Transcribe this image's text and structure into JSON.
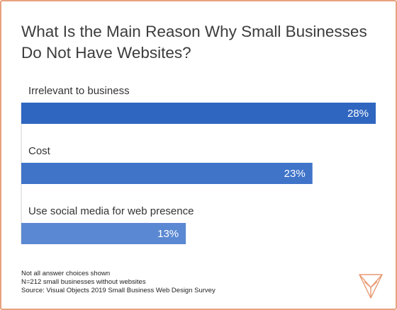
{
  "chart_data": {
    "type": "bar",
    "orientation": "horizontal",
    "title": "What Is the Main Reason Why Small Businesses Do Not Have Websites?",
    "categories": [
      "Irrelevant to business",
      "Cost",
      "Use social media for web presence"
    ],
    "values": [
      28,
      23,
      13
    ],
    "value_labels": [
      "28%",
      "23%",
      "13%"
    ],
    "xlim": [
      0,
      28
    ],
    "unit": "%",
    "colors": [
      "#2f66c0",
      "#3f74c9",
      "#5a88d2"
    ],
    "grid": false,
    "legend": "none"
  },
  "footnotes": [
    "Not all answer choices shown",
    "N=212 small businesses without websites",
    "Source: Visual Objects 2019 Small Business Web Design Survey"
  ],
  "logo_icon": "visual-objects-logo-icon",
  "border_color": "#e8a27e"
}
